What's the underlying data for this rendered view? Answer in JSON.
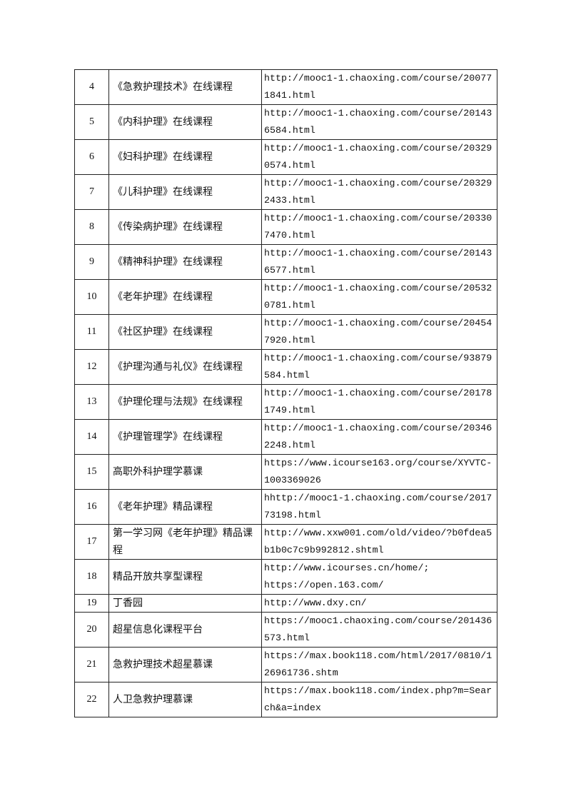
{
  "rows": [
    {
      "no": "4",
      "name": "《急救护理技术》在线课程",
      "url": "http://mooc1-1.chaoxing.com/course/200771841.html"
    },
    {
      "no": "5",
      "name": "《内科护理》在线课程",
      "url": "http://mooc1-1.chaoxing.com/course/201436584.html"
    },
    {
      "no": "6",
      "name": "《妇科护理》在线课程",
      "url": "http://mooc1-1.chaoxing.com/course/203290574.html"
    },
    {
      "no": "7",
      "name": "《儿科护理》在线课程",
      "url": "http://mooc1-1.chaoxing.com/course/203292433.html"
    },
    {
      "no": "8",
      "name": "《传染病护理》在线课程",
      "url": "http://mooc1-1.chaoxing.com/course/203307470.html"
    },
    {
      "no": "9",
      "name": "《精神科护理》在线课程",
      "url": "http://mooc1-1.chaoxing.com/course/201436577.html"
    },
    {
      "no": "10",
      "name": "《老年护理》在线课程",
      "url": "http://mooc1-1.chaoxing.com/course/205320781.html"
    },
    {
      "no": "11",
      "name": "《社区护理》在线课程",
      "url": "http://mooc1-1.chaoxing.com/course/204547920.html"
    },
    {
      "no": "12",
      "name": "《护理沟通与礼仪》在线课程",
      "url": "http://mooc1-1.chaoxing.com/course/93879584.html"
    },
    {
      "no": "13",
      "name": "《护理伦理与法规》在线课程",
      "url": "http://mooc1-1.chaoxing.com/course/201781749.html"
    },
    {
      "no": "14",
      "name": "《护理管理学》在线课程",
      "url": "http://mooc1-1.chaoxing.com/course/203462248.html"
    },
    {
      "no": "15",
      "name": "高职外科护理学慕课",
      "url": "https://www.icourse163.org/course/XYVTC-1003369026"
    },
    {
      "no": "16",
      "name": "《老年护理》精品课程",
      "url": "hhttp://mooc1-1.chaoxing.com/course/201773198.html"
    },
    {
      "no": "17",
      "name": "第一学习网《老年护理》精品课程",
      "url": "http://www.xxw001.com/old/video/?b0fdea5b1b0c7c9b992812.shtml"
    },
    {
      "no": "18",
      "name": "精品开放共享型课程",
      "url": "http://www.icourses.cn/home/;\nhttps://open.163.com/"
    },
    {
      "no": "19",
      "name": "丁香园",
      "url": "http://www.dxy.cn/"
    },
    {
      "no": "20",
      "name": "超星信息化课程平台",
      "url": "https://mooc1.chaoxing.com/course/201436573.html"
    },
    {
      "no": "21",
      "name": "急救护理技术超星慕课",
      "url": "https://max.book118.com/html/2017/0810/126961736.shtm"
    },
    {
      "no": "22",
      "name": "人卫急救护理慕课",
      "url": "https://max.book118.com/index.php?m=Search&a=index"
    }
  ]
}
